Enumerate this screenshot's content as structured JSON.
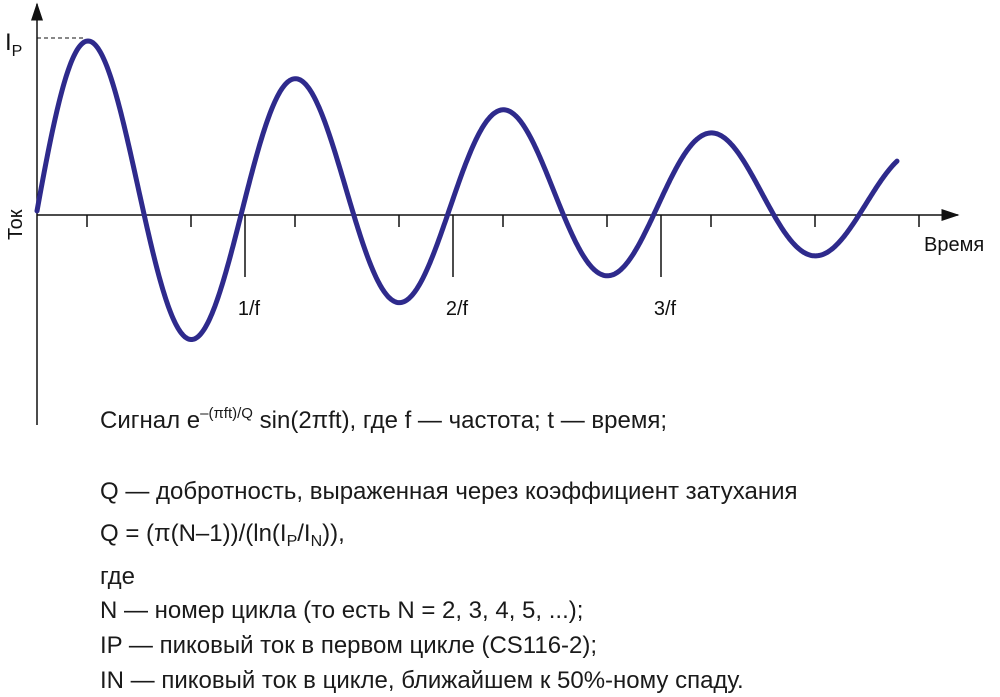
{
  "axes": {
    "y_label": "Ток",
    "x_label": "Время",
    "peak_label": {
      "main": "I",
      "sub": "P"
    },
    "x_ticks": [
      "1/f",
      "2/f",
      "3/f"
    ]
  },
  "text": {
    "signal": {
      "prefix": "Сигнал e",
      "sup": "–(πft)/Q",
      "rest": " sin(2πft), где f — частота; t — время;"
    },
    "q_def": "Q — добротность, выраженная через коэффициент затухания",
    "q_formula": {
      "a": "Q = (π(N–1))/(ln(I",
      "sub1": "P",
      "b": "/I",
      "sub2": "N",
      "c": ")),"
    },
    "where": "где",
    "n_def": "N — номер цикла (то есть N = 2, 3, 4, 5, ...);",
    "ip_def": "IP — пиковый ток в первом цикле (CS116-2);",
    "in_def": "IN — пиковый ток в цикле, ближайшем к 50%-ному спаду."
  }
}
